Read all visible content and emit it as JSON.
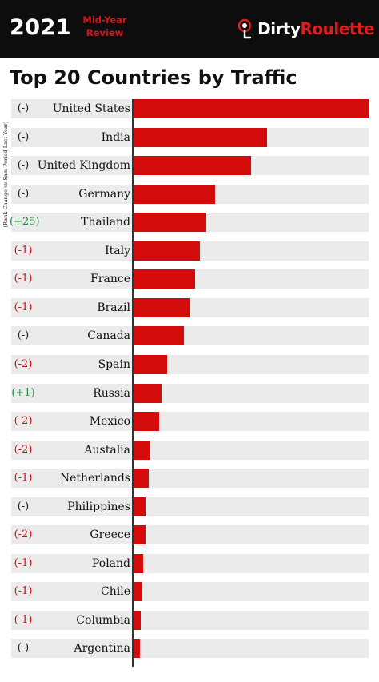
{
  "header": {
    "year": "2021",
    "subtitle": "Mid-Year Review",
    "brand_left": "Dirty",
    "brand_right": "Roulette"
  },
  "colors": {
    "bar": "#d40b0b",
    "positive": "#1e8f3a",
    "negative": "#d01414",
    "neutral": "#222222",
    "row_bg": "#ebebeb"
  },
  "chart_data": {
    "type": "bar",
    "orientation": "horizontal",
    "title": "Top 20 Countries by Traffic",
    "ylabel": "(Rank Change vs Sam Period Last Year)",
    "xlabel": "",
    "grid": false,
    "categories": [
      "United States",
      "India",
      "United Kingdom",
      "Germany",
      "Thailand",
      "Italy",
      "France",
      "Brazil",
      "Canada",
      "Spain",
      "Russia",
      "Mexico",
      "Austalia",
      "Netherlands",
      "Philippines",
      "Greece",
      "Poland",
      "Chile",
      "Columbia",
      "Argentina"
    ],
    "rank_change": [
      "(-)",
      "(-)",
      "(-)",
      "(-)",
      "(+25)",
      "(-1)",
      "(-1)",
      "(-1)",
      "(-)",
      "(-2)",
      "(+1)",
      "(-2)",
      "(-2)",
      "(-1)",
      "(-)",
      "(-2)",
      "(-1)",
      "(-1)",
      "(-1)",
      "(-)"
    ],
    "values": [
      100,
      57,
      50,
      34.8,
      31.2,
      28.5,
      26.3,
      24.4,
      21.8,
      14.4,
      12.3,
      11.2,
      7.3,
      6.6,
      5.5,
      5.3,
      4.3,
      4.1,
      3.4,
      3.2
    ],
    "xlim": [
      0,
      100
    ]
  }
}
